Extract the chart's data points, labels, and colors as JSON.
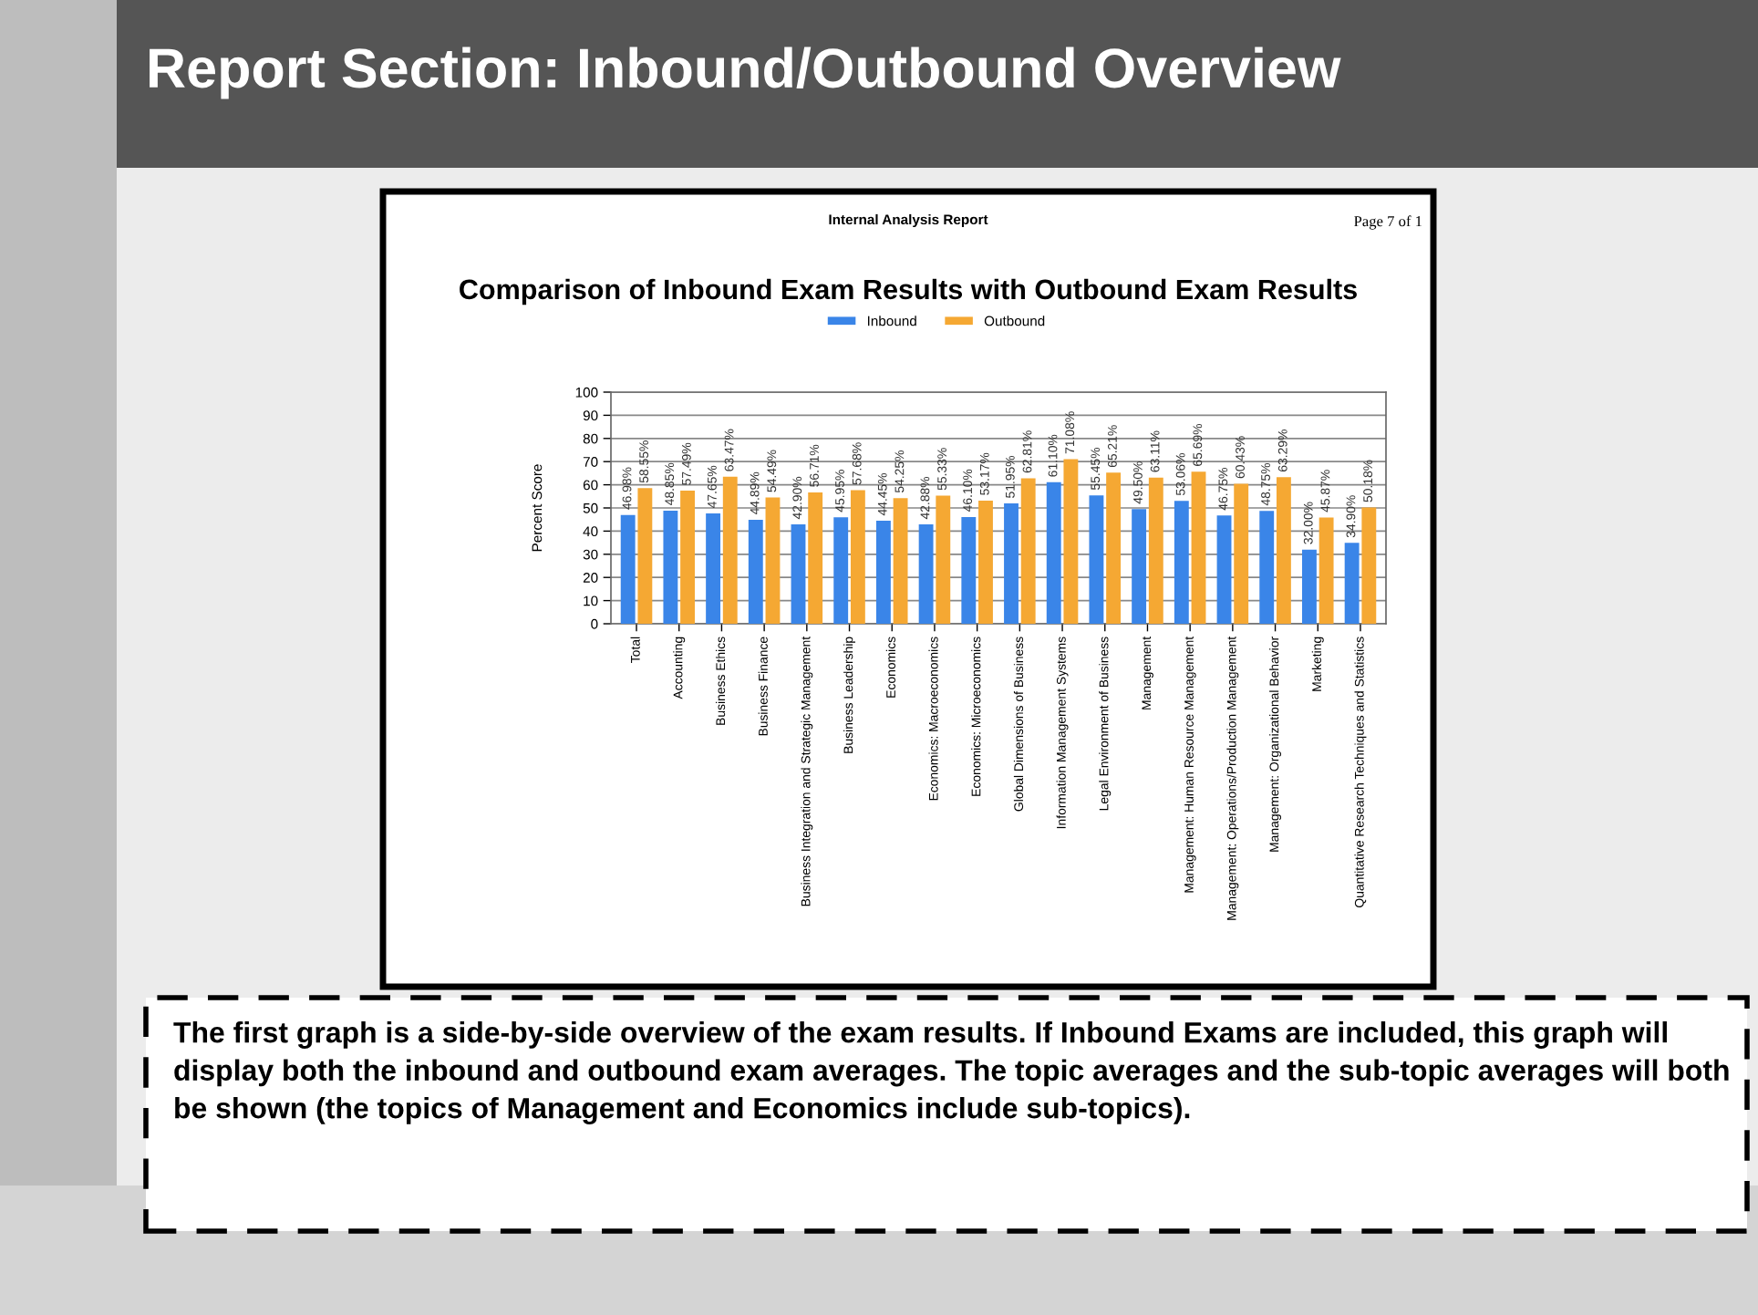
{
  "chart_data": {
    "type": "bar",
    "title": "Comparison of Inbound Exam Results with Outbound Exam Results",
    "subtitle": "Internal Analysis Report",
    "ylabel": "Percent Score",
    "annotations": [
      "Report Section: Inbound/Outbound Overview",
      "Page 7 of 1",
      "The first graph is a side-by-side overview of the exam results. If Inbound Exams are included, this graph will display both the inbound and outbound exam averages. The topic averages and the sub-topic averages will both be shown (the topics of Management and Economics include sub-topics)."
    ],
    "categories": [
      "Total",
      "Accounting",
      "Business Ethics",
      "Business Finance",
      "Business Integration and Strategic Management",
      "Business Leadership",
      "Economics",
      "Economics: Macroeconomics",
      "Economics: Microeconomics",
      "Global Dimensions of Business",
      "Information Management Systems",
      "Legal Environment of Business",
      "Management",
      "Management: Human Resource Management",
      "Management: Operations/Production Management",
      "Management: Organizational Behavior",
      "Marketing",
      "Quantitative Research Techniques and Statistics"
    ],
    "series": [
      {
        "name": "Inbound",
        "color": "#3a85e8",
        "values": [
          46.98,
          48.85,
          47.65,
          44.89,
          42.9,
          45.95,
          44.45,
          42.88,
          46.1,
          51.95,
          61.1,
          55.45,
          49.5,
          53.06,
          46.75,
          48.75,
          32.0,
          34.9
        ],
        "value_labels": [
          "46.98%",
          "48.85%",
          "47.65%",
          "44.89%",
          "42.90%",
          "45.95%",
          "44.45%",
          "42.88%",
          "46.10%",
          "51.95%",
          "61.10%",
          "55.45%",
          "49.50%",
          "53.06%",
          "46.75%",
          "48.75%",
          "32.00%",
          "34.90%"
        ]
      },
      {
        "name": "Outbound",
        "color": "#f5a833",
        "values": [
          58.55,
          57.49,
          63.47,
          54.49,
          56.71,
          57.68,
          54.25,
          55.33,
          53.17,
          62.81,
          71.08,
          65.21,
          63.11,
          65.69,
          60.43,
          63.29,
          45.87,
          50.18
        ],
        "value_labels": [
          "58.55%",
          "57.49%",
          "63.47%",
          "54.49%",
          "56.71%",
          "57.68%",
          "54.25%",
          "55.33%",
          "53.17%",
          "62.81%",
          "71.08%",
          "65.21%",
          "63.11%",
          "65.69%",
          "60.43%",
          "63.29%",
          "45.87%",
          "50.18%"
        ]
      }
    ],
    "ylim": [
      0,
      100
    ],
    "yticks": [
      0,
      10,
      20,
      30,
      40,
      50,
      60,
      70,
      80,
      90,
      100
    ],
    "grid": "y",
    "legend": "top"
  }
}
